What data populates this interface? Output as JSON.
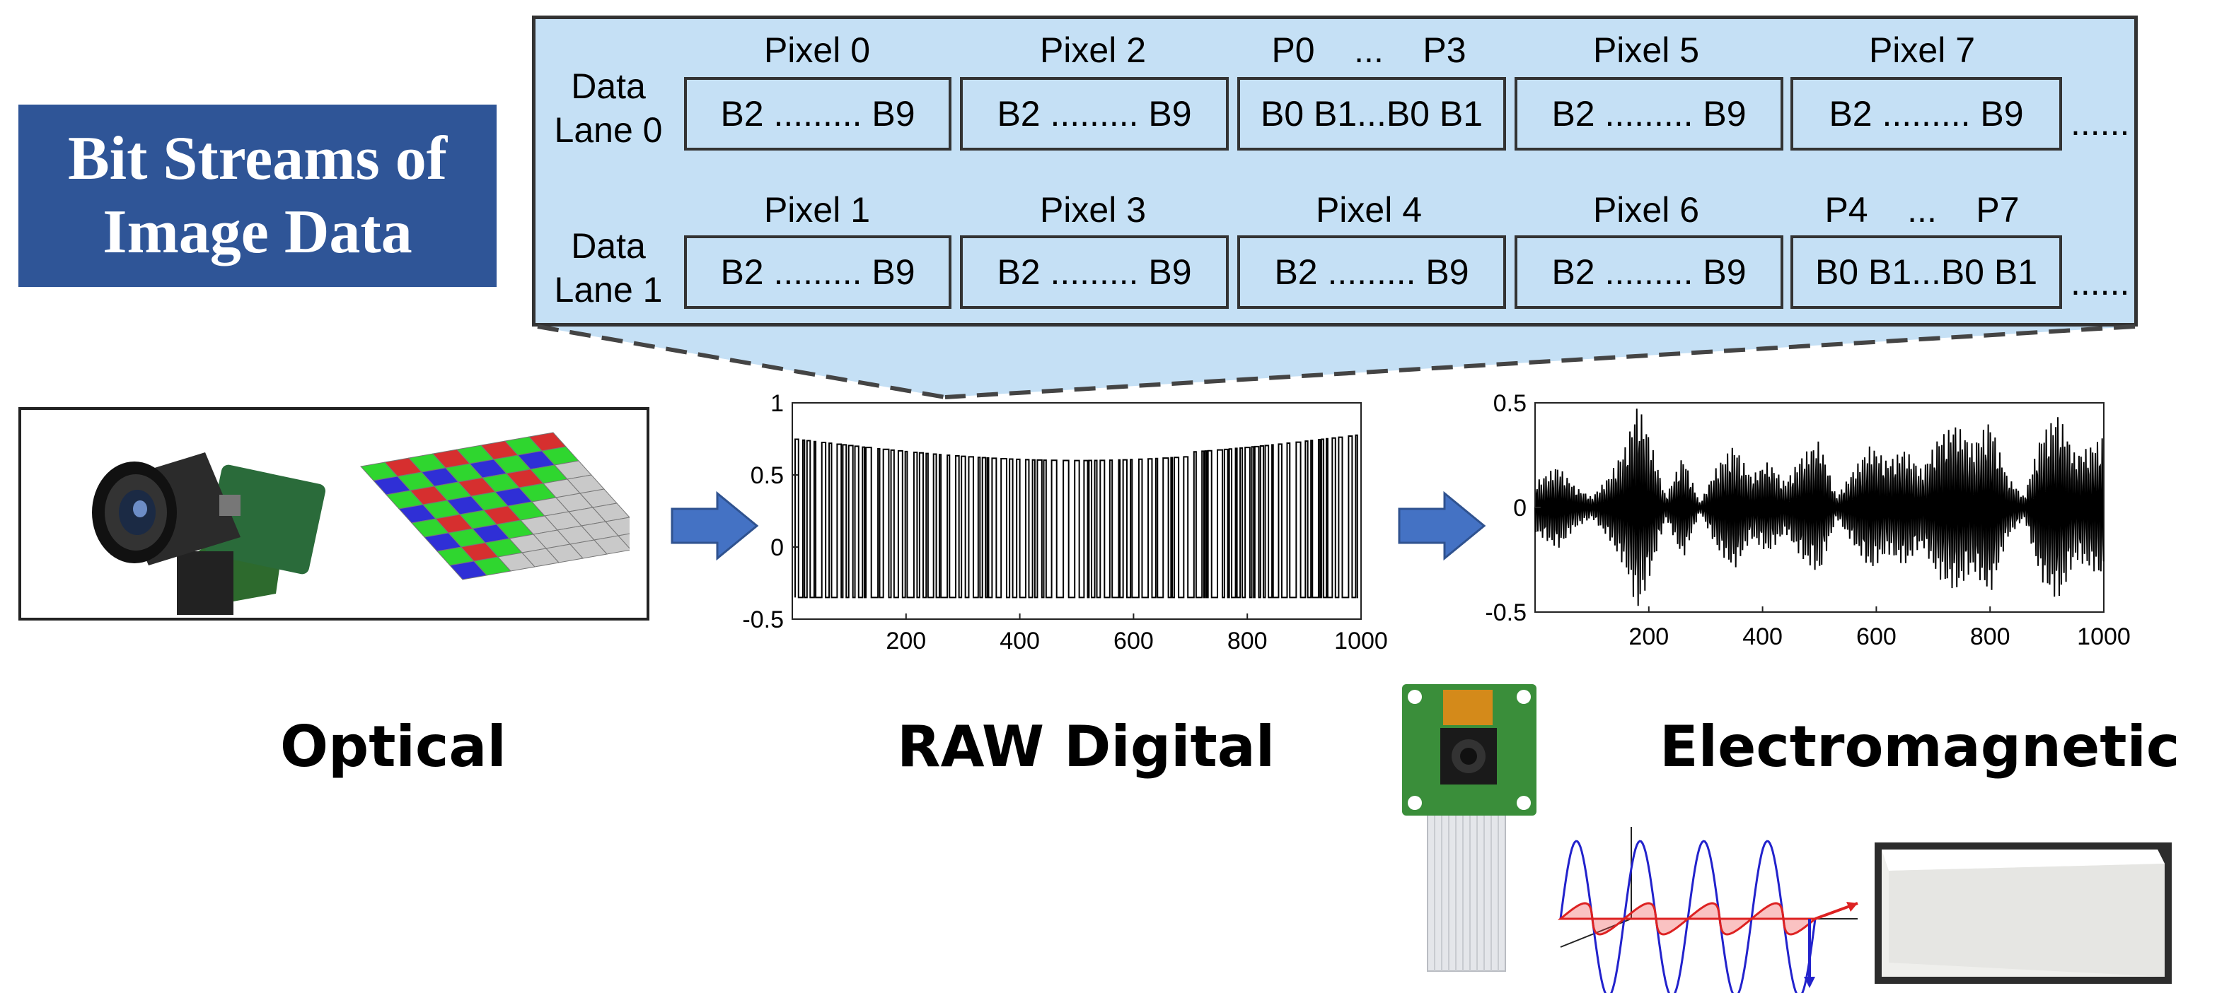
{
  "title": {
    "text": "Bit Streams of\nImage Data",
    "bg_color": "#2f5597"
  },
  "bitstream": {
    "panel_color": "#c5e0f5",
    "lanes": [
      {
        "label": "Data\nLane 0",
        "headers": [
          "Pixel 0",
          "Pixel 2",
          "P0    ...    P3",
          "Pixel 5",
          "Pixel 7"
        ],
        "cells": [
          "B2 ......... B9",
          "B2 ......... B9",
          "B0 B1...B0 B1",
          "B2 ......... B9",
          "B2 ......... B9"
        ],
        "trail": "......"
      },
      {
        "label": "Data\nLane 1",
        "headers": [
          "Pixel 1",
          "Pixel 3",
          "Pixel 4",
          "Pixel 6",
          "P4    ...    P7"
        ],
        "cells": [
          "B2 ......... B9",
          "B2 ......... B9",
          "B2 ......... B9",
          "B2 ......... B9",
          "B0 B1...B0 B1"
        ],
        "trail": "......"
      }
    ]
  },
  "labels": {
    "optical": "Optical",
    "raw": "RAW Digital",
    "em": "Electromagnetic"
  },
  "icons": [
    "camera-icon",
    "bayer-filter-icon",
    "arrow-right-icon",
    "camera-module-icon",
    "em-wave-icon",
    "antenna-photo-icon"
  ],
  "chart_data": [
    {
      "type": "line",
      "title": "",
      "xlabel": "",
      "ylabel": "",
      "xlim": [
        0,
        1000
      ],
      "ylim": [
        -0.5,
        1
      ],
      "xticks": [
        "200",
        "400",
        "600",
        "800",
        "1000"
      ],
      "yticks": [
        "1",
        "0.5",
        "0",
        "-0.5"
      ],
      "series": [
        {
          "description_values": "square pulse train between ~-0.35 and ~0.7",
          "low": -0.35,
          "high_start": 0.75,
          "high_mid": 0.6,
          "high_end": 0.68
        }
      ]
    },
    {
      "type": "line",
      "title": "",
      "xlabel": "",
      "ylabel": "",
      "xlim": [
        0,
        1000
      ],
      "ylim": [
        -0.5,
        0.5
      ],
      "xticks": [
        "200",
        "400",
        "600",
        "800",
        "1000"
      ],
      "yticks": [
        "0.5",
        "0",
        "-0.5"
      ],
      "series": [
        {
          "envelope_x": [
            0,
            40,
            70,
            100,
            130,
            160,
            180,
            200,
            230,
            260,
            290,
            320,
            350,
            380,
            410,
            440,
            470,
            500,
            530,
            560,
            590,
            620,
            650,
            680,
            710,
            740,
            770,
            800,
            830,
            860,
            890,
            920,
            950,
            980,
            1000
          ],
          "envelope_y": [
            0.12,
            0.2,
            0.1,
            0.05,
            0.15,
            0.3,
            0.5,
            0.35,
            0.05,
            0.25,
            0.02,
            0.2,
            0.3,
            0.15,
            0.22,
            0.12,
            0.25,
            0.32,
            0.05,
            0.18,
            0.3,
            0.22,
            0.28,
            0.18,
            0.34,
            0.4,
            0.3,
            0.42,
            0.15,
            0.05,
            0.35,
            0.45,
            0.25,
            0.3,
            0.34
          ]
        }
      ]
    }
  ]
}
